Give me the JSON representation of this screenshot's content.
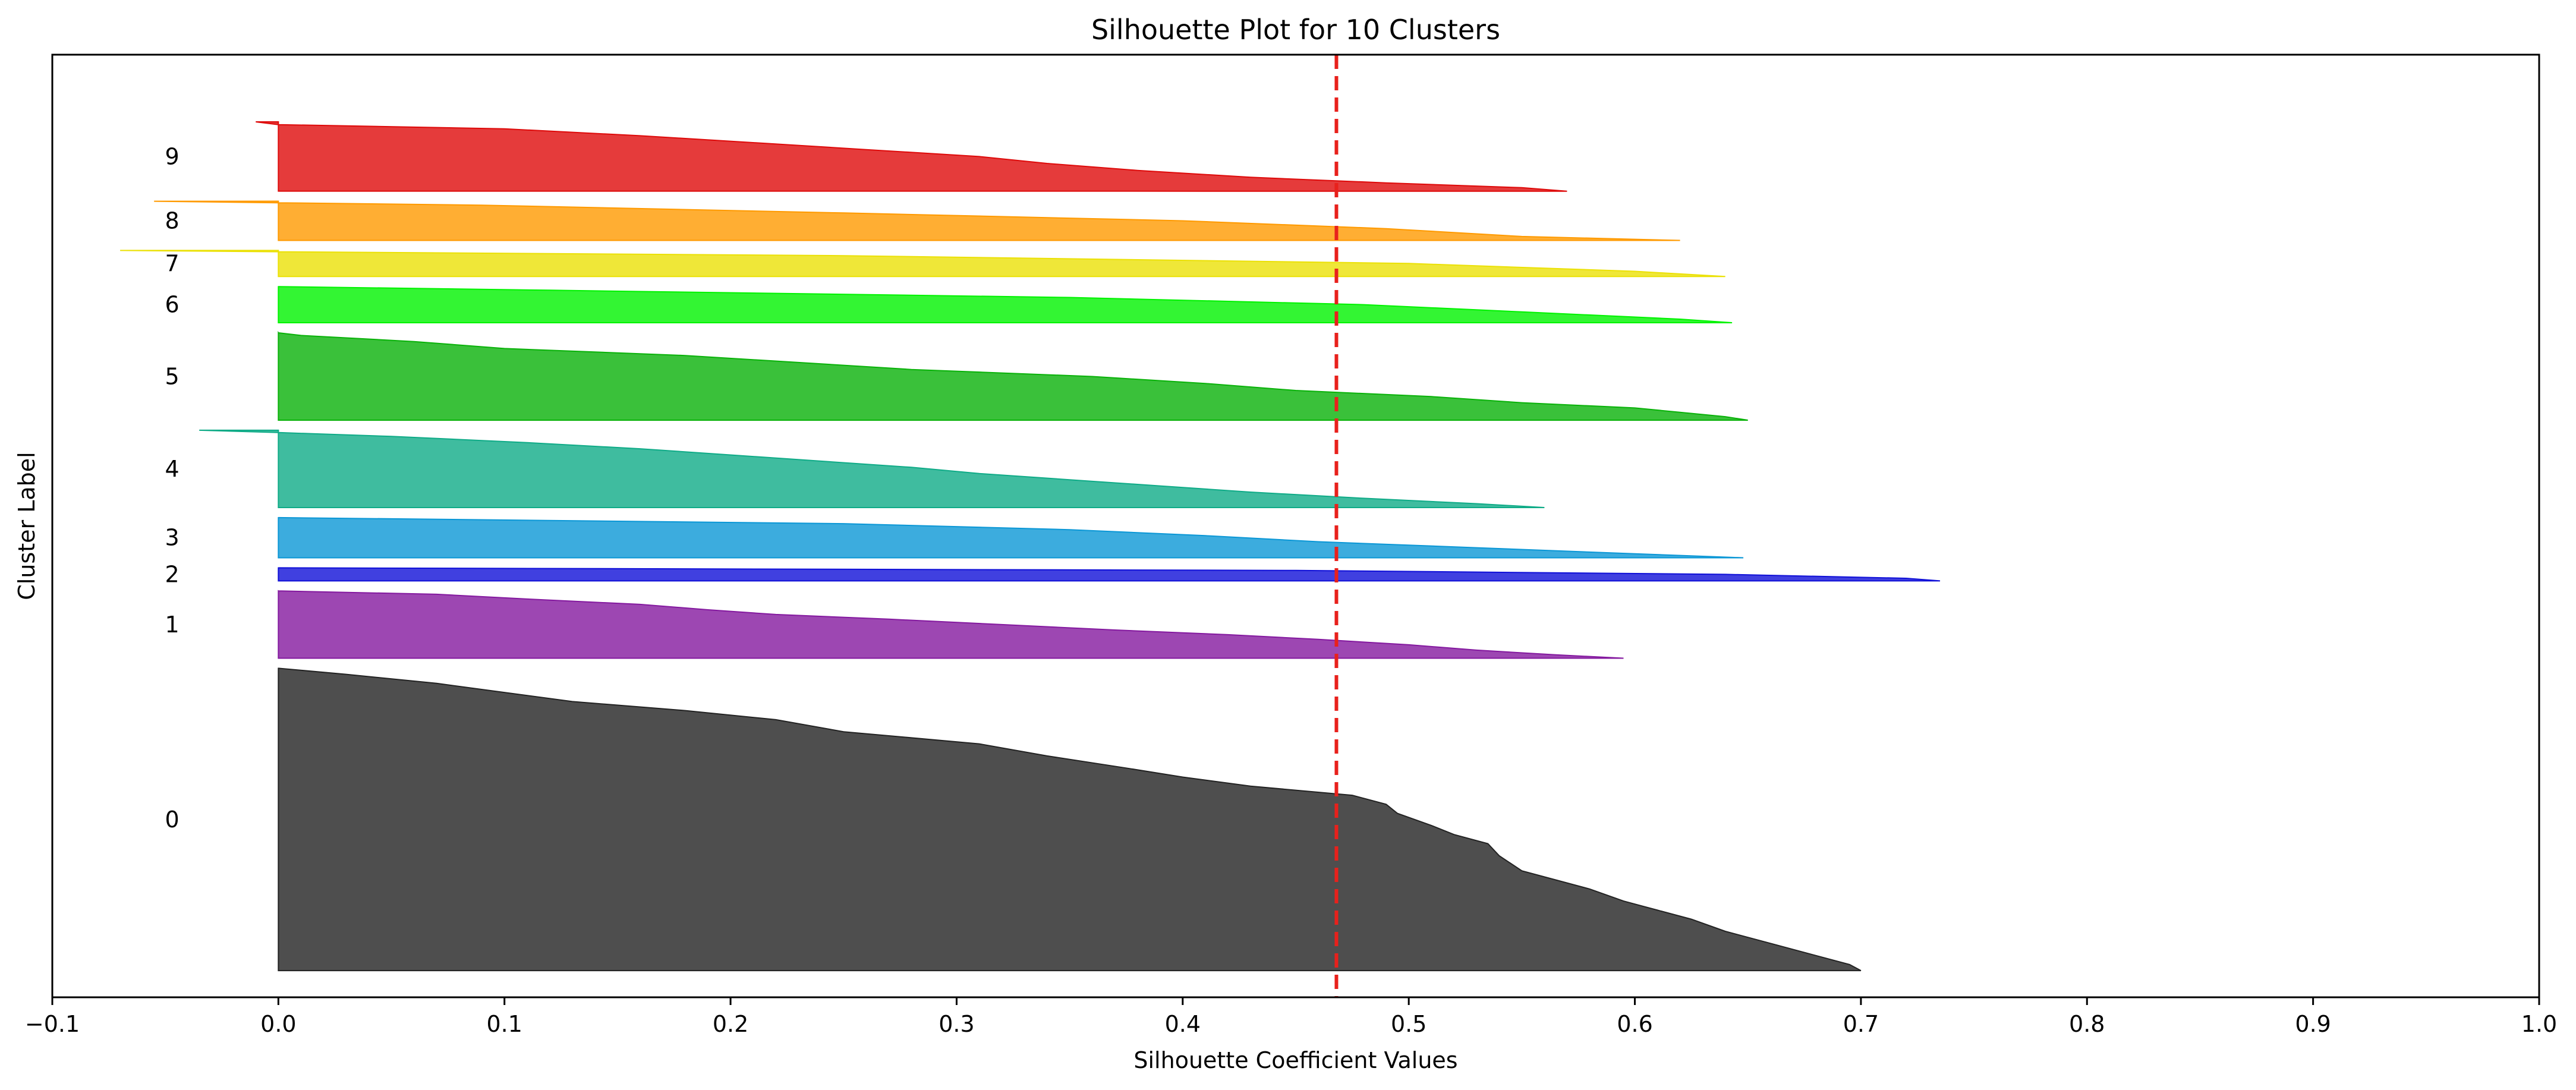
{
  "chart_data": {
    "type": "area",
    "title": "Silhouette Plot for 10 Clusters",
    "xlabel": "Silhouette Coefficient Values",
    "ylabel": "Cluster Label",
    "xlim": [
      -0.1,
      1.0
    ],
    "xticks": [
      "−0.1",
      "0.0",
      "0.1",
      "0.2",
      "0.3",
      "0.4",
      "0.5",
      "0.6",
      "0.7",
      "0.8",
      "0.9",
      "1.0"
    ],
    "average_silhouette": 0.468,
    "average_line_color": "#e8211c",
    "grid": false,
    "clusters": [
      {
        "label": "0",
        "color": "#222222",
        "y_lower": 10,
        "y_upper": 311,
        "profile": [
          [
            0,
            0.7
          ],
          [
            0.02,
            0.695
          ],
          [
            0.05,
            0.68
          ],
          [
            0.09,
            0.66
          ],
          [
            0.13,
            0.64
          ],
          [
            0.17,
            0.625
          ],
          [
            0.2,
            0.61
          ],
          [
            0.23,
            0.595
          ],
          [
            0.27,
            0.58
          ],
          [
            0.3,
            0.565
          ],
          [
            0.33,
            0.55
          ],
          [
            0.38,
            0.54
          ],
          [
            0.42,
            0.535
          ],
          [
            0.45,
            0.52
          ],
          [
            0.48,
            0.51
          ],
          [
            0.52,
            0.495
          ],
          [
            0.55,
            0.49
          ],
          [
            0.58,
            0.475
          ],
          [
            0.61,
            0.43
          ],
          [
            0.64,
            0.4
          ],
          [
            0.67,
            0.375
          ],
          [
            0.71,
            0.34
          ],
          [
            0.75,
            0.31
          ],
          [
            0.79,
            0.25
          ],
          [
            0.83,
            0.22
          ],
          [
            0.86,
            0.18
          ],
          [
            0.89,
            0.13
          ],
          [
            0.92,
            0.1
          ],
          [
            0.95,
            0.07
          ],
          [
            0.98,
            0.03
          ],
          [
            1,
            0.0
          ]
        ]
      },
      {
        "label": "1",
        "color": "#84199f",
        "y_lower": 321,
        "y_upper": 388,
        "profile": [
          [
            0,
            0.595
          ],
          [
            0.05,
            0.565
          ],
          [
            0.12,
            0.53
          ],
          [
            0.2,
            0.5
          ],
          [
            0.28,
            0.46
          ],
          [
            0.35,
            0.42
          ],
          [
            0.42,
            0.37
          ],
          [
            0.5,
            0.32
          ],
          [
            0.58,
            0.27
          ],
          [
            0.65,
            0.22
          ],
          [
            0.72,
            0.19
          ],
          [
            0.8,
            0.16
          ],
          [
            0.88,
            0.11
          ],
          [
            0.95,
            0.07
          ],
          [
            1,
            0.0
          ]
        ]
      },
      {
        "label": "2",
        "color": "#1010d8",
        "y_lower": 398,
        "y_upper": 411,
        "profile": [
          [
            0,
            0.735
          ],
          [
            0.2,
            0.72
          ],
          [
            0.5,
            0.64
          ],
          [
            0.8,
            0.45
          ],
          [
            1,
            0.0
          ]
        ]
      },
      {
        "label": "3",
        "color": "#0b97d6",
        "y_lower": 421,
        "y_upper": 461,
        "profile": [
          [
            0,
            0.648
          ],
          [
            0.1,
            0.6
          ],
          [
            0.25,
            0.53
          ],
          [
            0.4,
            0.46
          ],
          [
            0.55,
            0.41
          ],
          [
            0.7,
            0.35
          ],
          [
            0.85,
            0.25
          ],
          [
            1,
            0.0
          ]
        ]
      },
      {
        "label": "4",
        "color": "#0fab87",
        "y_lower": 471,
        "y_upper": 548,
        "profile": [
          [
            0,
            0.56
          ],
          [
            0.05,
            0.53
          ],
          [
            0.12,
            0.48
          ],
          [
            0.2,
            0.43
          ],
          [
            0.28,
            0.39
          ],
          [
            0.36,
            0.35
          ],
          [
            0.44,
            0.31
          ],
          [
            0.52,
            0.28
          ],
          [
            0.6,
            0.24
          ],
          [
            0.68,
            0.2
          ],
          [
            0.76,
            0.16
          ],
          [
            0.84,
            0.11
          ],
          [
            0.92,
            0.05
          ],
          [
            0.97,
            0.0
          ],
          [
            1,
            -0.035
          ]
        ]
      },
      {
        "label": "5",
        "color": "#09b209",
        "y_lower": 558,
        "y_upper": 645,
        "profile": [
          [
            0,
            0.65
          ],
          [
            0.04,
            0.64
          ],
          [
            0.09,
            0.62
          ],
          [
            0.14,
            0.6
          ],
          [
            0.2,
            0.55
          ],
          [
            0.27,
            0.51
          ],
          [
            0.34,
            0.45
          ],
          [
            0.42,
            0.41
          ],
          [
            0.5,
            0.36
          ],
          [
            0.58,
            0.28
          ],
          [
            0.66,
            0.23
          ],
          [
            0.74,
            0.18
          ],
          [
            0.82,
            0.1
          ],
          [
            0.9,
            0.06
          ],
          [
            0.97,
            0.01
          ],
          [
            1,
            0.0
          ]
        ]
      },
      {
        "label": "6",
        "color": "#00f300",
        "y_lower": 655,
        "y_upper": 691,
        "profile": [
          [
            0,
            0.643
          ],
          [
            0.1,
            0.62
          ],
          [
            0.3,
            0.55
          ],
          [
            0.5,
            0.48
          ],
          [
            0.7,
            0.35
          ],
          [
            0.9,
            0.12
          ],
          [
            1,
            0.0
          ]
        ]
      },
      {
        "label": "7",
        "color": "#ebe106",
        "y_lower": 701,
        "y_upper": 727,
        "profile": [
          [
            0,
            0.64
          ],
          [
            0.2,
            0.6
          ],
          [
            0.5,
            0.5
          ],
          [
            0.8,
            0.25
          ],
          [
            0.95,
            0.0
          ],
          [
            1,
            -0.07
          ]
        ]
      },
      {
        "label": "8",
        "color": "#ff9a00",
        "y_lower": 737,
        "y_upper": 776,
        "profile": [
          [
            0,
            0.62
          ],
          [
            0.1,
            0.55
          ],
          [
            0.3,
            0.49
          ],
          [
            0.5,
            0.4
          ],
          [
            0.7,
            0.25
          ],
          [
            0.9,
            0.09
          ],
          [
            0.96,
            0.0
          ],
          [
            1,
            -0.055
          ]
        ]
      },
      {
        "label": "9",
        "color": "#de0a0a",
        "y_lower": 786,
        "y_upper": 855,
        "profile": [
          [
            0,
            0.57
          ],
          [
            0.05,
            0.55
          ],
          [
            0.12,
            0.49
          ],
          [
            0.2,
            0.43
          ],
          [
            0.3,
            0.38
          ],
          [
            0.4,
            0.34
          ],
          [
            0.5,
            0.31
          ],
          [
            0.6,
            0.26
          ],
          [
            0.7,
            0.21
          ],
          [
            0.8,
            0.16
          ],
          [
            0.9,
            0.1
          ],
          [
            0.96,
            0.0
          ],
          [
            1,
            -0.01
          ]
        ]
      }
    ]
  }
}
